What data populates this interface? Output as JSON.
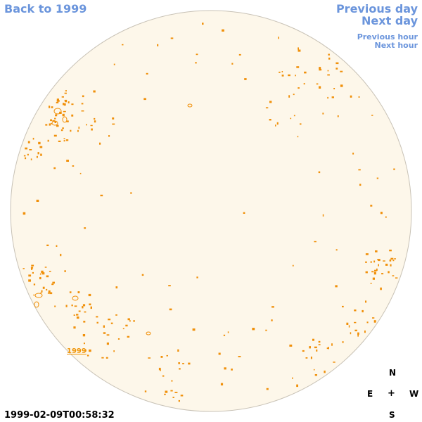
{
  "nav": {
    "back": "Back to 1999",
    "previous_day": "Previous day",
    "next_day": "Next day",
    "previous_hour": "Previous hour",
    "next_hour": "Next hour"
  },
  "disk": {
    "fill_color": "#fdf7ea",
    "edge_color": "#c8c2b6",
    "feature_color": "#f0900a",
    "year_label": "1999"
  },
  "timestamp": "1999-02-09T00:58:32",
  "compass": {
    "north": "N",
    "east": "E",
    "center": "+",
    "west": "W",
    "south": "S"
  }
}
